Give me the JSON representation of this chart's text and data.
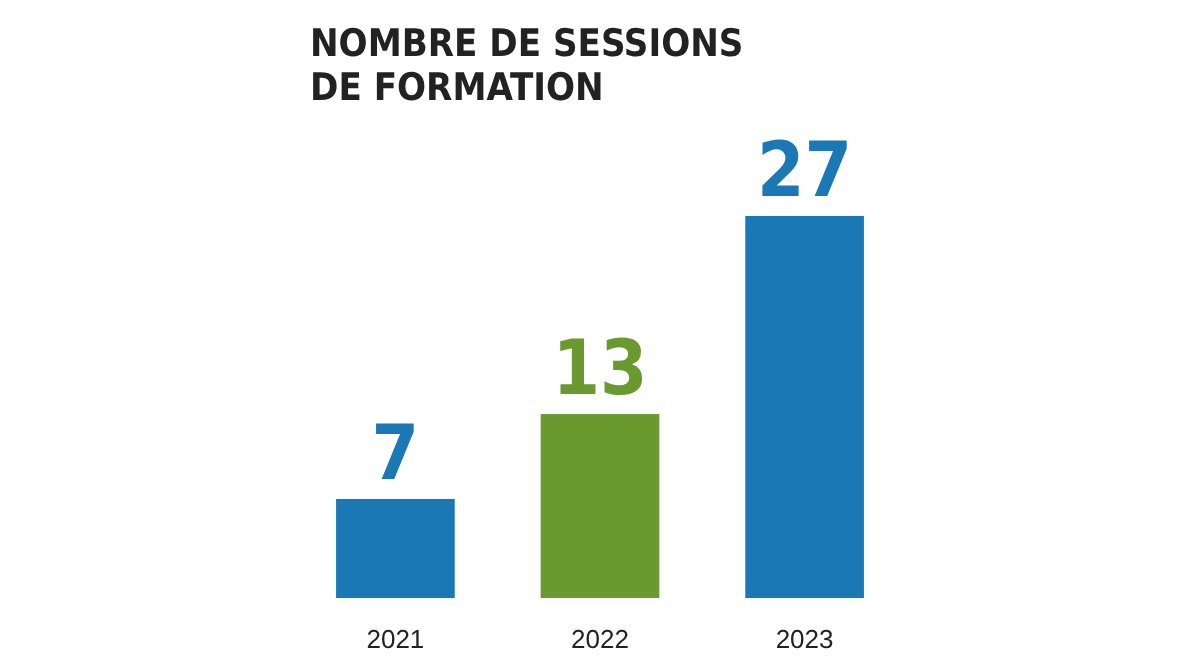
{
  "chart_data": {
    "type": "bar",
    "title": "NOMBRE DE SESSIONS\nDE FORMATION",
    "categories": [
      "2021",
      "2022",
      "2023"
    ],
    "values": [
      7,
      13,
      27
    ],
    "colors": [
      "#1a79b4",
      "#6a9a2f",
      "#1a79b4"
    ],
    "data_labels": true
  }
}
